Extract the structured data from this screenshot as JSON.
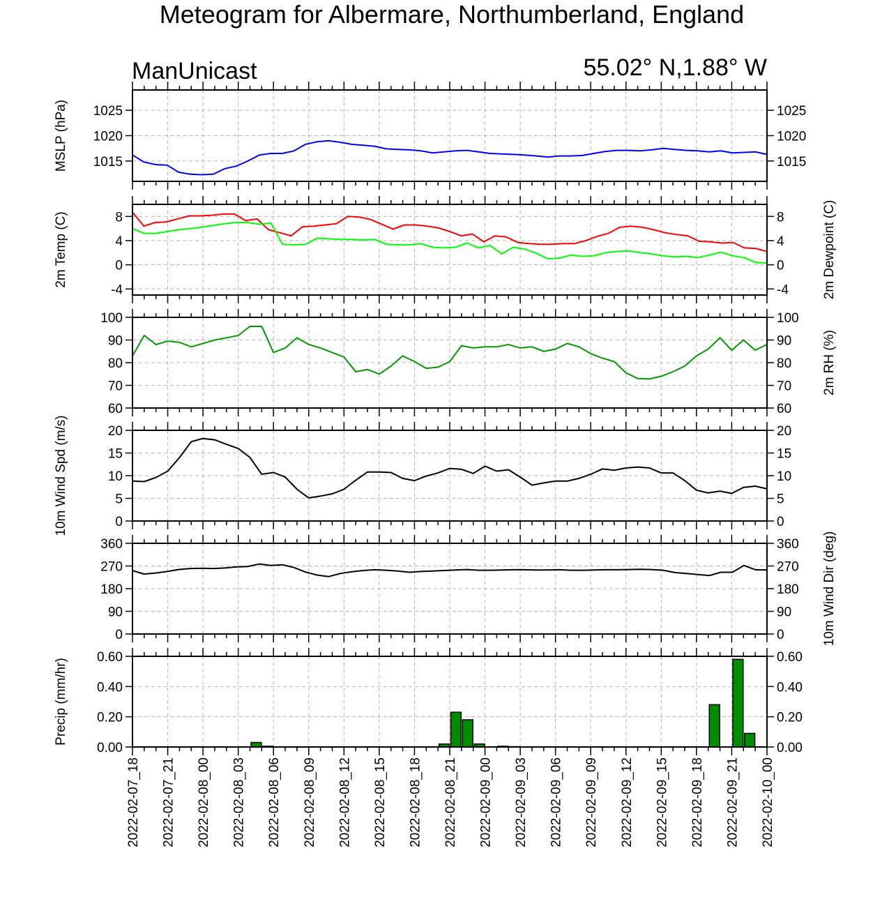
{
  "header": {
    "title": "Meteogram for Albermare, Northumberland, England",
    "model": "ManUnicast",
    "location": "55.02° N,1.88° W"
  },
  "x_axis": {
    "labels": [
      "2022-02-07_18",
      "2022-02-07_21",
      "2022-02-08_00",
      "2022-02-08_03",
      "2022-02-08_06",
      "2022-02-08_09",
      "2022-02-08_12",
      "2022-02-08_15",
      "2022-02-08_18",
      "2022-02-08_21",
      "2022-02-09_00",
      "2022-02-09_03",
      "2022-02-09_06",
      "2022-02-09_09",
      "2022-02-09_12",
      "2022-02-09_15",
      "2022-02-09_18",
      "2022-02-09_21",
      "2022-02-10_00"
    ]
  },
  "colors": {
    "mslp": "#0000ff",
    "temperature": "#ff0000",
    "dewpoint": "#00ff00",
    "rh": "#009900",
    "wind": "#000000",
    "precip_fill": "#008c00",
    "grid": "#b4b4b4"
  },
  "chart_data": [
    {
      "type": "line",
      "ylabel_left": "MSLP (hPa)",
      "ylim": [
        1011,
        1029
      ],
      "yticks": [
        1015,
        1020,
        1025
      ],
      "series": [
        {
          "values": [
            1016.2,
            1014.8,
            1014.3,
            1014.2,
            1012.8,
            1012.4,
            1012.3,
            1012.4,
            1013.5,
            1014.0,
            1015.0,
            1016.2,
            1016.5,
            1016.5,
            1017.0,
            1018.3,
            1018.8,
            1019.0,
            1018.7,
            1018.3,
            1018.1,
            1017.9,
            1017.4,
            1017.3,
            1017.2,
            1017.0,
            1016.6,
            1016.8,
            1017.0,
            1017.1,
            1016.8,
            1016.5,
            1016.4,
            1016.3,
            1016.2,
            1016.0,
            1015.8,
            1016.0,
            1016.0,
            1016.1,
            1016.5,
            1016.9,
            1017.1,
            1017.1,
            1017.0,
            1017.2,
            1017.5,
            1017.3,
            1017.1,
            1017.0,
            1016.8,
            1017.0,
            1016.6,
            1016.7,
            1016.8,
            1016.3
          ]
        }
      ]
    },
    {
      "type": "line",
      "ylabel_left": "2m Temp (C)",
      "ylabel_right": "2m Dewpoint (C)",
      "ylim": [
        -5,
        10
      ],
      "yticks": [
        -4,
        0,
        4,
        8
      ],
      "series": [
        {
          "values": [
            8.7,
            6.4,
            7.0,
            7.1,
            7.6,
            8.1,
            8.1,
            8.2,
            8.4,
            8.4,
            7.3,
            7.6,
            5.8,
            5.3,
            4.8,
            6.3,
            6.4,
            6.6,
            6.8,
            8.0,
            7.9,
            7.5,
            6.7,
            5.9,
            6.6,
            6.6,
            6.4,
            6.1,
            5.5,
            4.8,
            5.1,
            3.8,
            4.8,
            4.6,
            3.7,
            3.5,
            3.4,
            3.4,
            3.5,
            3.5,
            4.0,
            4.7,
            5.2,
            6.2,
            6.4,
            6.2,
            5.8,
            5.3,
            5.0,
            4.8,
            3.9,
            3.8,
            3.6,
            3.7,
            2.8,
            2.7,
            2.2
          ]
        },
        {
          "values": [
            6.0,
            5.2,
            5.2,
            5.5,
            5.8,
            6.0,
            6.2,
            6.5,
            6.8,
            7.0,
            7.0,
            6.7,
            6.9,
            3.4,
            3.3,
            3.4,
            4.4,
            4.3,
            4.2,
            4.2,
            4.1,
            4.2,
            3.4,
            3.3,
            3.3,
            3.5,
            2.9,
            2.8,
            2.9,
            3.6,
            2.8,
            3.2,
            1.8,
            2.9,
            2.6,
            1.9,
            1.0,
            1.1,
            1.6,
            1.4,
            1.5,
            2.0,
            2.2,
            2.3,
            2.0,
            1.8,
            1.5,
            1.3,
            1.4,
            1.2,
            1.6,
            2.1,
            1.5,
            1.2,
            0.4,
            0.3
          ]
        }
      ]
    },
    {
      "type": "line",
      "ylabel_right": "2m RH (%)",
      "ylim": [
        60,
        100
      ],
      "yticks": [
        60,
        70,
        80,
        90,
        100
      ],
      "series": [
        {
          "values": [
            83,
            92,
            88,
            89.5,
            89,
            87,
            88.5,
            90,
            91,
            92,
            96,
            96,
            84.5,
            86.5,
            91,
            88,
            86.5,
            84.5,
            82.5,
            76,
            77,
            75,
            78.5,
            83,
            80.5,
            77.5,
            78,
            80.5,
            87.5,
            86.5,
            87,
            87,
            88,
            86.5,
            87,
            85,
            86,
            88.5,
            87,
            84,
            82,
            80.5,
            75.5,
            73,
            72.8,
            74,
            76,
            78.5,
            83,
            86,
            91,
            85.5,
            90,
            85.5,
            88
          ]
        }
      ]
    },
    {
      "type": "line",
      "ylabel_left": "10m Wind Spd (m/s)",
      "ylim": [
        0,
        20
      ],
      "yticks": [
        0,
        5,
        10,
        15,
        20
      ],
      "series": [
        {
          "values": [
            8.8,
            8.7,
            9.6,
            11.0,
            14.0,
            17.5,
            18.2,
            17.9,
            16.9,
            16.0,
            14.0,
            10.3,
            10.7,
            9.7,
            7.0,
            5.1,
            5.5,
            6.0,
            7.0,
            9.0,
            10.8,
            10.8,
            10.7,
            9.4,
            8.9,
            9.9,
            10.6,
            11.6,
            11.4,
            10.5,
            12.1,
            11.0,
            11.3,
            9.7,
            7.9,
            8.4,
            8.8,
            8.8,
            9.4,
            10.3,
            11.5,
            11.2,
            11.7,
            11.9,
            11.7,
            10.6,
            10.6,
            8.9,
            6.8,
            6.2,
            6.6,
            6.1,
            7.4,
            7.7,
            7.1
          ]
        }
      ]
    },
    {
      "type": "line",
      "ylabel_right": "10m Wind Dir (deg)",
      "ylim": [
        0,
        360
      ],
      "yticks": [
        0,
        90,
        180,
        270,
        360
      ],
      "series": [
        {
          "values": [
            252,
            238,
            242,
            248,
            256,
            260,
            261,
            260,
            262,
            266,
            268,
            278,
            272,
            275,
            264,
            246,
            234,
            228,
            240,
            247,
            252,
            255,
            253,
            250,
            245,
            248,
            250,
            252,
            254,
            256,
            253,
            253,
            254,
            255,
            255,
            254,
            254,
            255,
            253,
            253,
            254,
            255,
            255,
            256,
            257,
            256,
            253,
            244,
            240,
            236,
            232,
            245,
            245,
            272,
            255,
            254
          ]
        }
      ]
    },
    {
      "type": "bar",
      "ylabel_left": "Precip (mm/hr)",
      "ylim": [
        0,
        0.6
      ],
      "yticks": [
        "0.00",
        "0.20",
        "0.40",
        "0.60"
      ],
      "categories_hours": [
        10,
        11,
        26,
        27,
        28,
        29,
        31,
        32,
        49,
        51,
        52
      ],
      "values": [
        0.03,
        0.005,
        0.02,
        0.23,
        0.18,
        0.02,
        0.005,
        0.002,
        0.28,
        0.58,
        0.09
      ]
    }
  ]
}
